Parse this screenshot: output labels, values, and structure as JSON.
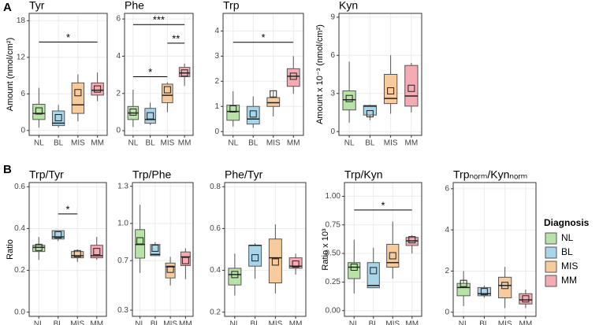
{
  "panel_labels": [
    "A",
    "B"
  ],
  "legend": {
    "title": "Diagnosis",
    "items": [
      "NL",
      "BL",
      "MIS",
      "MM"
    ]
  },
  "colors": [
    "#b9e2a9",
    "#a8d5e8",
    "#f8cb9c",
    "#f5abb2"
  ],
  "chart_data": [
    {
      "type": "box",
      "title": "Tyr",
      "ylabel": "Amount (nmol/cm²)",
      "categories": [
        "NL",
        "BL",
        "MIS",
        "MM"
      ],
      "ylim": [
        -0.8,
        19.2
      ],
      "yticks": [
        0,
        6,
        12,
        18
      ],
      "boxes": [
        {
          "min": 0.5,
          "q1": 1.8,
          "median": 2.8,
          "q3": 4.3,
          "max": 7,
          "mean": 3.2
        },
        {
          "min": 0.5,
          "q1": 0.8,
          "median": 1.2,
          "q3": 3.2,
          "max": 4.2,
          "mean": 2.1
        },
        {
          "min": 1.5,
          "q1": 2.8,
          "median": 4.2,
          "q3": 7.8,
          "max": 9.2,
          "mean": 6.2
        },
        {
          "min": 4.8,
          "q1": 5.8,
          "median": 6.6,
          "q3": 7.8,
          "max": 9.5,
          "mean": 6.8
        }
      ],
      "annotations": [
        {
          "x1": "NL",
          "x2": "MM",
          "y": 14.5,
          "label": "*"
        }
      ]
    },
    {
      "type": "box",
      "title": "Phe",
      "categories": [
        "NL",
        "BL",
        "MIS",
        "MM"
      ],
      "ylim": [
        -0.25,
        6.3
      ],
      "yticks": [
        0,
        2,
        4,
        6
      ],
      "boxes": [
        {
          "min": 0.2,
          "q1": 0.6,
          "median": 0.95,
          "q3": 1.3,
          "max": 2.2,
          "mean": 1.0
        },
        {
          "min": 0.3,
          "q1": 0.4,
          "median": 0.6,
          "q3": 1.2,
          "max": 1.5,
          "mean": 0.8
        },
        {
          "min": 1.0,
          "q1": 1.5,
          "median": 1.9,
          "q3": 2.5,
          "max": 2.6,
          "mean": 2.2
        },
        {
          "min": 2.4,
          "q1": 2.9,
          "median": 3.1,
          "q3": 3.4,
          "max": 3.6,
          "mean": 3.1
        }
      ],
      "annotations": [
        {
          "x1": "NL",
          "x2": "MIS",
          "y": 2.9,
          "label": "*"
        },
        {
          "x1": "MIS",
          "x2": "MM",
          "y": 4.7,
          "label": "**"
        },
        {
          "x1": "NL",
          "x2": "MM",
          "y": 5.7,
          "label": "***"
        }
      ]
    },
    {
      "type": "box",
      "title": "Trp",
      "categories": [
        "NL",
        "BL",
        "MIS",
        "MM"
      ],
      "ylim": [
        -0.15,
        4.7
      ],
      "yticks": [
        0,
        1,
        2,
        3,
        4
      ],
      "boxes": [
        {
          "min": 0.2,
          "q1": 0.45,
          "median": 0.8,
          "q3": 1.05,
          "max": 1.6,
          "mean": 0.9
        },
        {
          "min": 0.15,
          "q1": 0.3,
          "median": 0.5,
          "q3": 1.0,
          "max": 1.4,
          "mean": 0.7
        },
        {
          "min": 0.6,
          "q1": 1.0,
          "median": 1.15,
          "q3": 1.35,
          "max": 1.6,
          "mean": 1.5
        },
        {
          "min": 1.5,
          "q1": 1.8,
          "median": 2.2,
          "q3": 2.5,
          "max": 3.0,
          "mean": 2.2
        }
      ],
      "annotations": [
        {
          "x1": "NL",
          "x2": "MM",
          "y": 3.55,
          "label": "*"
        }
      ]
    },
    {
      "type": "box",
      "title": "Kyn",
      "ylabel": "Amount x 10⁻³ (nmol/cm²)",
      "categories": [
        "NL",
        "BL",
        "MIS",
        "MM"
      ],
      "ylim": [
        -0.3,
        9.3
      ],
      "yticks": [
        0,
        3,
        6,
        9
      ],
      "boxes": [
        {
          "min": 0.7,
          "q1": 1.7,
          "median": 2.5,
          "q3": 3.2,
          "max": 5.5,
          "mean": 2.6
        },
        {
          "min": 0.9,
          "q1": 1.3,
          "median": 2.0,
          "q3": 2.05,
          "max": 2.1,
          "mean": 1.4
        },
        {
          "min": 1.4,
          "q1": 2.2,
          "median": 2.6,
          "q3": 4.5,
          "max": 6.0,
          "mean": 3.2
        },
        {
          "min": 1.5,
          "q1": 2.0,
          "median": 2.8,
          "q3": 5.2,
          "max": 5.4,
          "mean": 3.4
        }
      ],
      "annotations": []
    },
    {
      "type": "box",
      "title": "Trp/Tyr",
      "ylabel": "Ratio",
      "categories": [
        "NL",
        "BL",
        "MIS",
        "MM"
      ],
      "ylim": [
        -0.02,
        0.62
      ],
      "yticks": [
        {
          "value": 0,
          "label": "0.0"
        },
        0.2,
        0.4,
        0.6
      ],
      "boxes": [
        {
          "min": 0.25,
          "q1": 0.29,
          "median": 0.31,
          "q3": 0.32,
          "max": 0.36,
          "mean": 0.31
        },
        {
          "min": 0.34,
          "q1": 0.35,
          "median": 0.36,
          "q3": 0.39,
          "max": 0.39,
          "mean": 0.37
        },
        {
          "min": 0.24,
          "q1": 0.26,
          "median": 0.27,
          "q3": 0.29,
          "max": 0.3,
          "mean": 0.28
        },
        {
          "min": 0.25,
          "q1": 0.26,
          "median": 0.27,
          "q3": 0.32,
          "max": 0.36,
          "mean": 0.29
        }
      ],
      "annotations": [
        {
          "x1": "BL",
          "x2": "MIS",
          "y": 0.47,
          "label": "*"
        }
      ]
    },
    {
      "type": "box",
      "title": "Trp/Phe",
      "categories": [
        "NL",
        "BL",
        "MIS",
        "MM"
      ],
      "ylim": [
        0.25,
        1.33
      ],
      "yticks": [
        0.3,
        0.7,
        {
          "value": 1,
          "label": "1.0"
        },
        1.3
      ],
      "boxes": [
        {
          "min": 0.6,
          "q1": 0.72,
          "median": 0.83,
          "q3": 0.95,
          "max": 1.15,
          "mean": 0.86
        },
        {
          "min": 0.74,
          "q1": 0.74,
          "median": 0.75,
          "q3": 0.83,
          "max": 0.85,
          "mean": 0.8
        },
        {
          "min": 0.5,
          "q1": 0.56,
          "median": 0.65,
          "q3": 0.68,
          "max": 0.73,
          "mean": 0.63
        },
        {
          "min": 0.55,
          "q1": 0.66,
          "median": 0.73,
          "q3": 0.77,
          "max": 0.8,
          "mean": 0.7
        }
      ],
      "annotations": []
    },
    {
      "type": "box",
      "title": "Phe/Tyr",
      "categories": [
        "NL",
        "BL",
        "MIS",
        "MM"
      ],
      "ylim": [
        0.18,
        0.82
      ],
      "yticks": [
        0.2,
        0.4,
        0.6,
        0.8
      ],
      "boxes": [
        {
          "min": 0.28,
          "q1": 0.33,
          "median": 0.38,
          "q3": 0.41,
          "max": 0.48,
          "mean": 0.38
        },
        {
          "min": 0.36,
          "q1": 0.42,
          "median": 0.52,
          "q3": 0.52,
          "max": 0.53,
          "mean": 0.46
        },
        {
          "min": 0.29,
          "q1": 0.34,
          "median": 0.46,
          "q3": 0.55,
          "max": 0.62,
          "mean": 0.44
        },
        {
          "min": 0.38,
          "q1": 0.41,
          "median": 0.42,
          "q3": 0.46,
          "max": 0.48,
          "mean": 0.43
        }
      ],
      "annotations": []
    },
    {
      "type": "box",
      "title": "Trp/Kyn",
      "ylabel": "Ratio x 10³",
      "categories": [
        "NL",
        "BL",
        "MIS",
        "MM"
      ],
      "ylim": [
        -0.05,
        1.12
      ],
      "yticks": [
        {
          "value": 0,
          "label": "0.00"
        },
        0.25,
        {
          "value": 0.5,
          "label": "0.50"
        },
        0.75,
        {
          "value": 1,
          "label": "1.00"
        }
      ],
      "boxes": [
        {
          "min": 0.15,
          "q1": 0.28,
          "median": 0.38,
          "q3": 0.42,
          "max": 0.62,
          "mean": 0.38
        },
        {
          "min": 0.2,
          "q1": 0.2,
          "median": 0.22,
          "q3": 0.42,
          "max": 0.55,
          "mean": 0.35
        },
        {
          "min": 0.28,
          "q1": 0.38,
          "median": 0.42,
          "q3": 0.58,
          "max": 0.78,
          "mean": 0.48
        },
        {
          "min": 0.5,
          "q1": 0.57,
          "median": 0.61,
          "q3": 0.64,
          "max": 0.66,
          "mean": 0.62
        }
      ],
      "annotations": [
        {
          "x1": "NL",
          "x2": "MM",
          "y": 0.88,
          "label": "*"
        }
      ]
    },
    {
      "type": "box",
      "title": "Trpₙₒᵣₘ/Kynₙₒᵣₘ",
      "categories": [
        "NL",
        "BL",
        "MIS",
        "MM"
      ],
      "ylim": [
        -0.2,
        6.3
      ],
      "yticks": [
        0,
        2,
        4,
        6
      ],
      "boxes": [
        {
          "min": 0.3,
          "q1": 0.8,
          "median": 1.2,
          "q3": 1.4,
          "max": 2.0,
          "mean": 1.4
        },
        {
          "min": 0.7,
          "q1": 0.8,
          "median": 0.9,
          "q3": 1.2,
          "max": 1.3,
          "mean": 1.0
        },
        {
          "min": 0.2,
          "q1": 0.7,
          "median": 1.3,
          "q3": 1.7,
          "max": 2.2,
          "mean": 1.3
        },
        {
          "min": 0.2,
          "q1": 0.4,
          "median": 0.6,
          "q3": 0.9,
          "max": 1.1,
          "mean": 0.65
        }
      ],
      "annotations": []
    }
  ]
}
